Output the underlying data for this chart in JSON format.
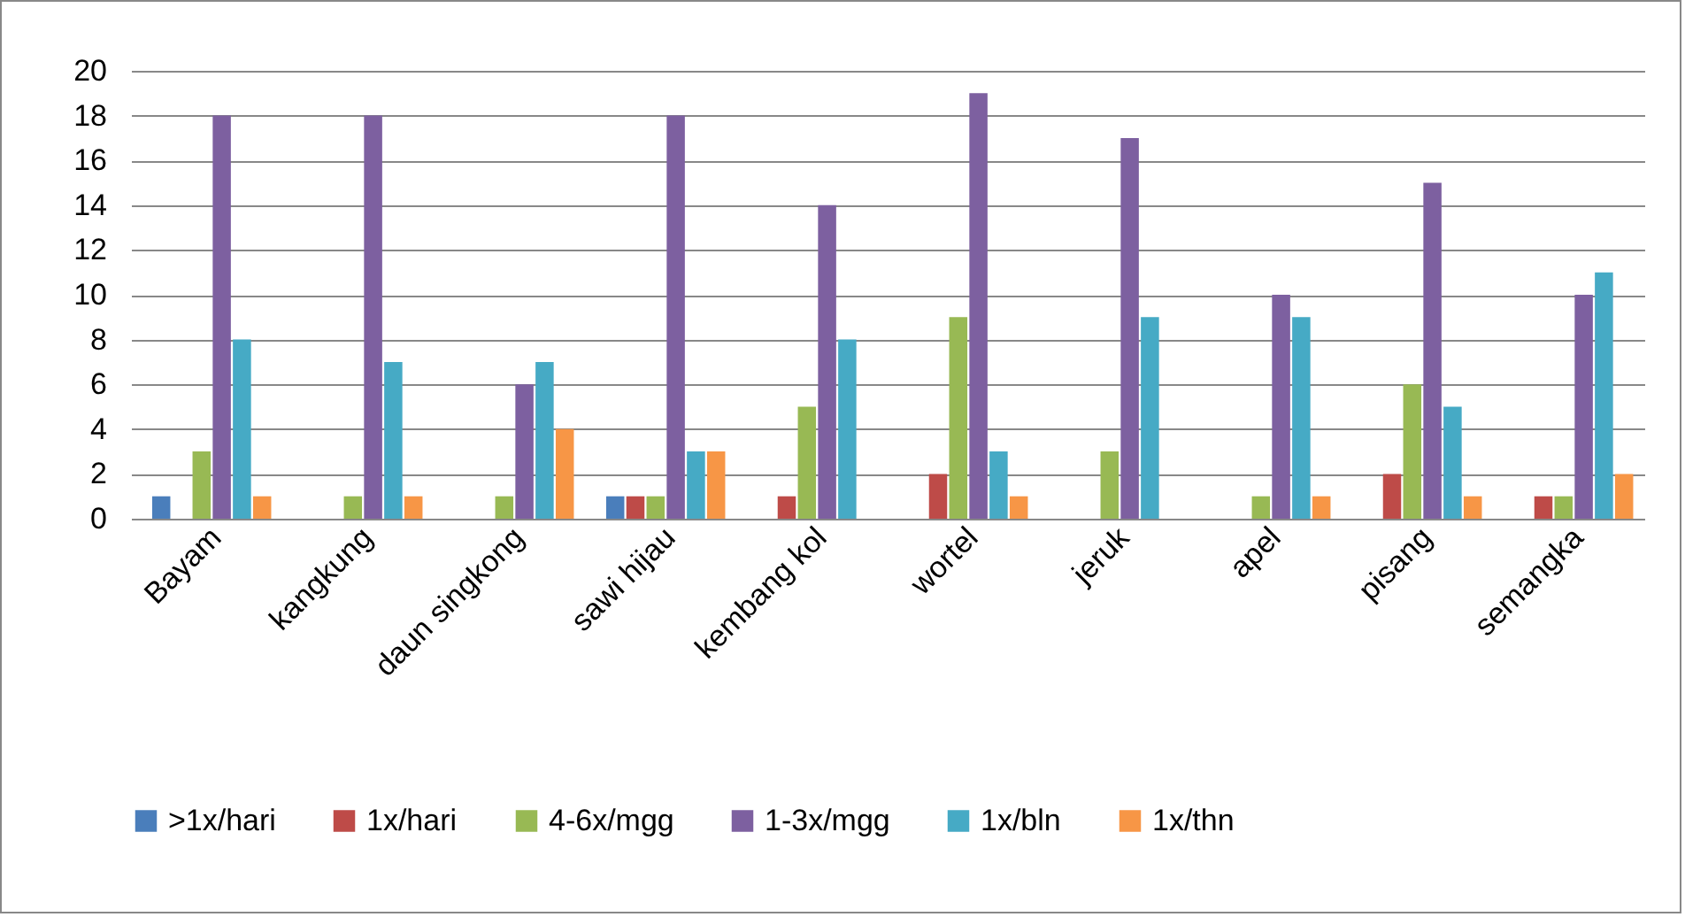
{
  "chart_data": {
    "type": "bar",
    "categories": [
      "Bayam",
      "kangkung",
      "daun singkong",
      "sawi hijau",
      "kembang kol",
      "wortel",
      "jeruk",
      "apel",
      "pisang",
      "semangka"
    ],
    "series": [
      {
        "name": ">1x/hari",
        "color": "#4a7ebb",
        "values": [
          1,
          0,
          0,
          1,
          0,
          0,
          0,
          0,
          0,
          0
        ]
      },
      {
        "name": "1x/hari",
        "color": "#be4b48",
        "values": [
          0,
          0,
          0,
          1,
          1,
          2,
          0,
          0,
          2,
          1
        ]
      },
      {
        "name": "4-6x/mgg",
        "color": "#98b954",
        "values": [
          3,
          1,
          1,
          1,
          5,
          9,
          3,
          1,
          6,
          1
        ]
      },
      {
        "name": "1-3x/mgg",
        "color": "#7d60a0",
        "values": [
          18,
          18,
          6,
          18,
          14,
          19,
          17,
          10,
          15,
          10
        ]
      },
      {
        "name": "1x/bln",
        "color": "#46aac5",
        "values": [
          8,
          7,
          7,
          3,
          8,
          3,
          9,
          9,
          5,
          11
        ]
      },
      {
        "name": "1x/thn",
        "color": "#f79646",
        "values": [
          1,
          1,
          4,
          3,
          0,
          1,
          0,
          1,
          1,
          2
        ]
      }
    ],
    "ylim": [
      0,
      20
    ],
    "yticks": [
      0,
      2,
      4,
      6,
      8,
      10,
      12,
      14,
      16,
      18,
      20
    ],
    "grid": "y",
    "legend": "bottom"
  }
}
